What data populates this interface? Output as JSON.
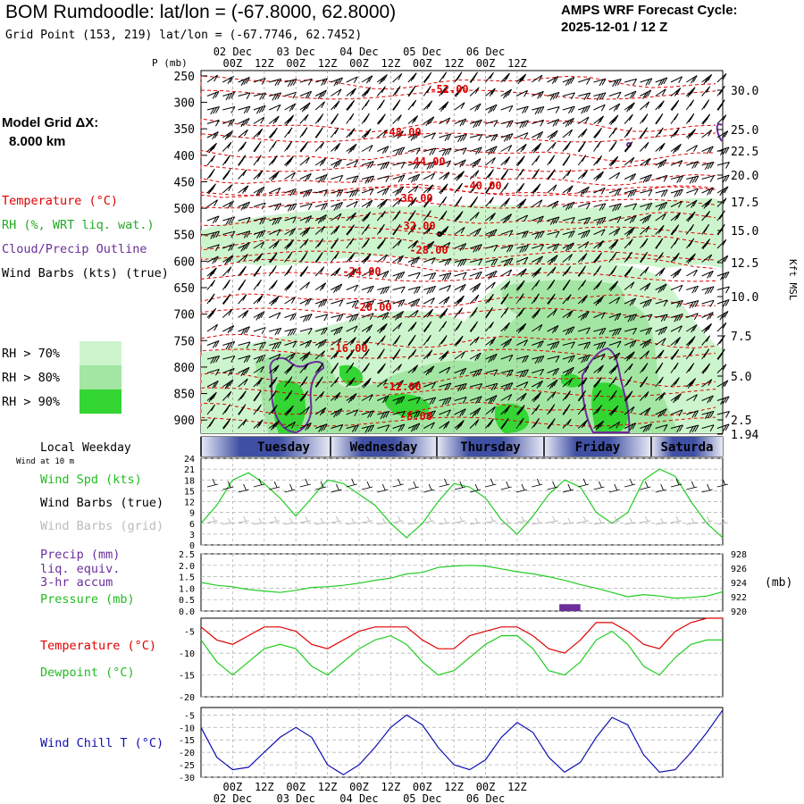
{
  "header": {
    "title": "BOM Rumdoodle:  lat/lon = (-67.8000, 62.8000)",
    "subtitle": "Grid Point (153, 219) lat/lon = (-67.7746, 62.7452)",
    "cycle_line1": "AMPS WRF Forecast Cycle:",
    "cycle_line2": "2025-12-01 / 12  Z",
    "model_grid_line1": "Model Grid ΔX:",
    "model_grid_line2": "8.000 km"
  },
  "colors": {
    "temperature": "#e00000",
    "rh": "#22bb22",
    "cloud": "#6a2d9a",
    "wind": "#000000",
    "dewpoint": "#22cc22",
    "windchill": "#1010b0",
    "precip": "#6a2d9a",
    "rh70": "#cdf5cd",
    "rh80": "#a3e6a3",
    "rh90": "#33d633"
  },
  "legend": {
    "temperature": "Temperature (°C)",
    "rh": "RH (%, WRT liq. wat.)",
    "cloud": "Cloud/Precip Outline",
    "wind": "Wind Barbs (kts) (true)",
    "rh70": "RH > 70%",
    "rh80": "RH > 80%",
    "rh90": "RH > 90%"
  },
  "time_axis": {
    "top_label": "P (mb)",
    "ticks": [
      "00Z",
      "12Z",
      "00Z",
      "12Z",
      "00Z",
      "12Z",
      "00Z",
      "12Z",
      "00Z",
      "12Z"
    ],
    "dates": [
      "02 Dec",
      "03 Dec",
      "04 Dec",
      "05 Dec",
      "06 Dec"
    ],
    "weekday_label": "Local Weekday",
    "weekdays": [
      "Tuesday",
      "Wednesday",
      "Thursday",
      "Friday",
      "Saturda"
    ]
  },
  "chart_data": [
    {
      "type": "heatmap",
      "panel": "upper-air cross section",
      "y_axis_label": "P (mb)",
      "right_axis_label": "Kft MSL",
      "pressure_ticks": [
        "250",
        "300",
        "350",
        "400",
        "450",
        "500",
        "550",
        "600",
        "650",
        "700",
        "750",
        "800",
        "850",
        "900"
      ],
      "height_ticks": [
        "30.0",
        "25.0",
        "22.5",
        "20.0",
        "17.5",
        "15.0",
        "12.5",
        "10.0",
        "7.5",
        "5.0",
        "2.5",
        "1.94"
      ],
      "ylim": [
        925,
        240
      ],
      "temperature_contours": [
        "-52.00",
        "-48.00",
        "-44.00",
        "-40.00",
        "-36.00",
        "-32.00",
        "-28.00",
        "-24.00",
        "-20.00",
        "-16.00",
        "-12.00",
        "-8.00"
      ],
      "rh_thresholds": [
        "RH > 70%",
        "RH > 80%",
        "RH > 90%"
      ]
    },
    {
      "type": "line",
      "panel": "wind speed",
      "header": "Wind at 10 m",
      "labels": [
        "Wind Spd (kts)",
        "Wind Barbs (true)",
        "Wind Barbs (grid)"
      ],
      "y_ticks": [
        "24",
        "21",
        "18",
        "15",
        "12",
        "9",
        "6",
        "3",
        "0"
      ],
      "ylim": [
        0,
        24
      ],
      "x_hours": [
        0,
        6,
        12,
        18,
        24,
        30,
        36,
        42,
        48,
        54,
        60,
        66,
        72,
        78,
        84,
        90,
        96,
        102,
        108,
        114,
        120,
        126,
        132,
        138,
        144,
        150,
        156,
        162,
        168,
        174,
        180,
        186,
        192,
        198
      ],
      "wind_speed_kts": [
        6,
        11,
        18,
        20,
        17,
        13,
        8,
        13,
        18,
        17,
        14,
        11,
        6,
        2,
        6,
        12,
        17,
        16,
        13,
        7,
        3,
        8,
        14,
        18,
        16,
        9,
        6,
        9,
        18,
        21,
        19,
        12,
        6,
        2
      ]
    },
    {
      "type": "line",
      "panel": "precip and pressure",
      "labels": [
        "Precip (mm)",
        "liq. equiv.",
        "3-hr accum",
        "Pressure (mb)"
      ],
      "precip_ticks": [
        "2.5",
        "2.0",
        "1.5",
        "1.0",
        "0.5",
        "0.0"
      ],
      "pressure_ticks": [
        "928",
        "926",
        "924",
        "922",
        "920"
      ],
      "pressure_unit": "(mb)",
      "precip_ylim": [
        0,
        2.5
      ],
      "pressure_ylim": [
        920,
        928
      ],
      "pressure_x_hours": [
        0,
        6,
        12,
        18,
        24,
        30,
        36,
        42,
        48,
        54,
        60,
        66,
        72,
        78,
        84,
        90,
        96,
        102,
        108,
        114,
        120,
        126,
        132,
        138,
        144,
        150,
        156,
        162,
        168,
        174,
        180,
        186,
        192,
        198
      ],
      "pressure_mb": [
        924,
        923.6,
        923.4,
        923.0,
        922.8,
        922.6,
        922.9,
        923.3,
        923.4,
        923.6,
        923.9,
        924.3,
        924.6,
        925.2,
        925.4,
        926.1,
        926.3,
        926.4,
        926.3,
        925.9,
        925.5,
        925.2,
        924.8,
        924.3,
        923.7,
        923.2,
        922.6,
        922.0,
        922.3,
        922.1,
        921.8,
        921.9,
        922.1,
        922.7
      ],
      "precip_bar": {
        "x_hours": [
          136,
          144
        ],
        "mm": 0.3
      }
    },
    {
      "type": "line",
      "panel": "temperature and dewpoint",
      "labels": [
        "Temperature (°C)",
        "Dewpoint (°C)"
      ],
      "y_ticks": [
        "-5",
        "-10",
        "-15",
        "-20"
      ],
      "ylim": [
        -20,
        -2
      ],
      "x_hours": [
        0,
        6,
        12,
        18,
        24,
        30,
        36,
        42,
        48,
        54,
        60,
        66,
        72,
        78,
        84,
        90,
        96,
        102,
        108,
        114,
        120,
        126,
        132,
        138,
        144,
        150,
        156,
        162,
        168,
        174,
        180,
        186,
        192,
        198
      ],
      "temperature": [
        -4,
        -7,
        -8,
        -6,
        -4,
        -4,
        -5,
        -8,
        -9,
        -7,
        -5,
        -4,
        -4,
        -4,
        -7,
        -9,
        -9,
        -6,
        -5,
        -4,
        -4,
        -6,
        -9,
        -10,
        -7,
        -3,
        -3,
        -5,
        -8,
        -9,
        -5,
        -3,
        -2,
        -2
      ],
      "dewpoint": [
        -7,
        -12,
        -15,
        -12,
        -9,
        -8,
        -9,
        -13,
        -15,
        -12,
        -9,
        -7,
        -6,
        -8,
        -12,
        -15,
        -14,
        -11,
        -8,
        -6,
        -6,
        -9,
        -14,
        -15,
        -12,
        -7,
        -5,
        -8,
        -13,
        -15,
        -11,
        -8,
        -7,
        -7
      ]
    },
    {
      "type": "line",
      "panel": "wind chill",
      "labels": [
        "Wind Chill T (°C)"
      ],
      "y_ticks": [
        "-5",
        "-10",
        "-15",
        "-20",
        "-25",
        "-30"
      ],
      "ylim": [
        -30,
        -2
      ],
      "x_hours": [
        0,
        6,
        12,
        18,
        24,
        30,
        36,
        42,
        48,
        54,
        60,
        66,
        72,
        78,
        84,
        90,
        96,
        102,
        108,
        114,
        120,
        126,
        132,
        138,
        144,
        150,
        156,
        162,
        168,
        174,
        180,
        186,
        192,
        198
      ],
      "wind_chill": [
        -10,
        -22,
        -27,
        -26,
        -20,
        -14,
        -10,
        -14,
        -25,
        -29,
        -25,
        -18,
        -10,
        -5,
        -9,
        -18,
        -25,
        -27,
        -23,
        -14,
        -8,
        -12,
        -22,
        -28,
        -24,
        -14,
        -6,
        -9,
        -21,
        -28,
        -27,
        -20,
        -12,
        -3
      ]
    }
  ]
}
